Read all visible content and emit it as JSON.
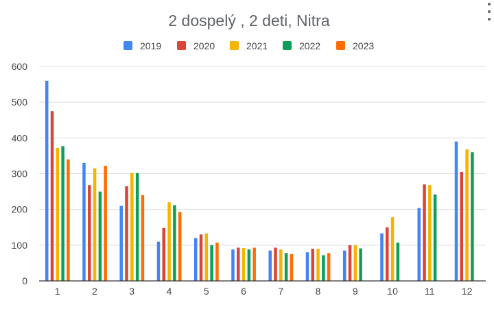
{
  "chart_data": {
    "type": "bar",
    "title": "2 dospelý , 2 deti, Nitra",
    "xlabel": "",
    "ylabel": "",
    "categories": [
      "1",
      "2",
      "3",
      "4",
      "5",
      "6",
      "7",
      "8",
      "9",
      "10",
      "11",
      "12"
    ],
    "ylim": [
      0,
      600
    ],
    "yticks": [
      "0",
      "100",
      "200",
      "300",
      "400",
      "500",
      "600"
    ],
    "grid": true,
    "legend_position": "top",
    "series": [
      {
        "name": "2019",
        "color": "#4285f4",
        "values": [
          560,
          330,
          210,
          110,
          120,
          88,
          85,
          80,
          85,
          133,
          204,
          390
        ]
      },
      {
        "name": "2020",
        "color": "#db4437",
        "values": [
          475,
          268,
          265,
          148,
          130,
          93,
          93,
          90,
          100,
          150,
          270,
          305
        ]
      },
      {
        "name": "2021",
        "color": "#f4b400",
        "values": [
          372,
          315,
          302,
          220,
          133,
          92,
          88,
          90,
          100,
          178,
          268,
          368
        ]
      },
      {
        "name": "2022",
        "color": "#0f9d58",
        "values": [
          377,
          250,
          302,
          212,
          100,
          88,
          78,
          72,
          91,
          107,
          242,
          360
        ]
      },
      {
        "name": "2023",
        "color": "#ff6d01",
        "values": [
          340,
          322,
          240,
          193,
          107,
          93,
          75,
          78,
          null,
          null,
          null,
          null
        ]
      }
    ]
  }
}
